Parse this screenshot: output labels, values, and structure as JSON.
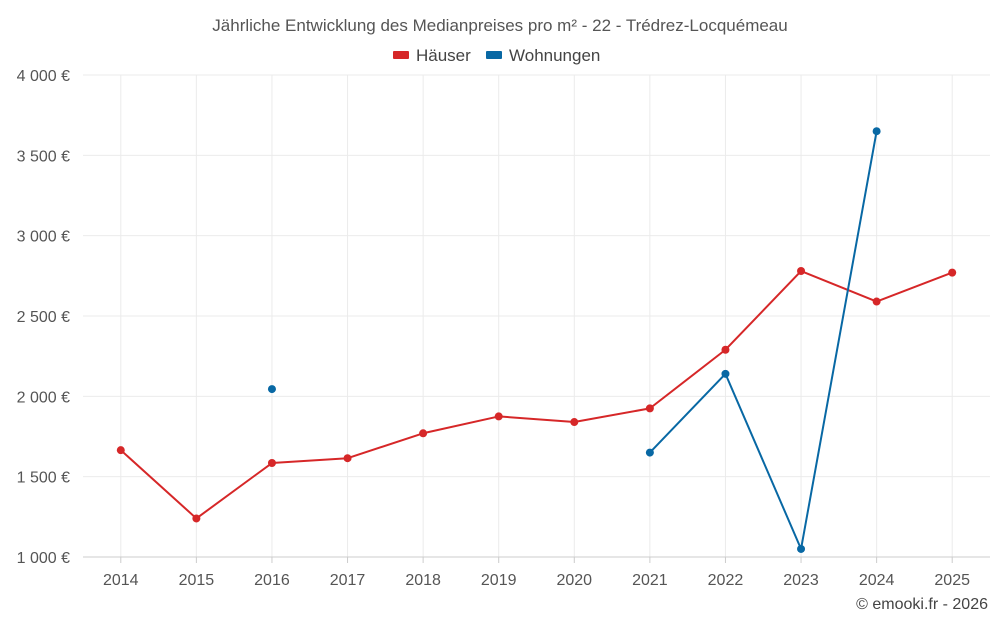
{
  "chart_data": {
    "type": "line",
    "title": "Jährliche Entwicklung des Medianpreises pro m² - 22 - Trédrez-Locquémeau",
    "categories": [
      "2014",
      "2015",
      "2016",
      "2017",
      "2018",
      "2019",
      "2020",
      "2021",
      "2022",
      "2023",
      "2024",
      "2025"
    ],
    "ylim": [
      1000,
      4000
    ],
    "yticks": [
      1000,
      1500,
      2000,
      2500,
      3000,
      3500,
      4000
    ],
    "ytick_labels": [
      "1 000 €",
      "1 500 €",
      "2 000 €",
      "2 500 €",
      "3 000 €",
      "3 500 €",
      "4 000 €"
    ],
    "grid": true,
    "legend_position": "top-center",
    "series": [
      {
        "name": "Häuser",
        "color": "#d62728",
        "values": [
          1665,
          1240,
          1585,
          1615,
          1770,
          1875,
          1840,
          1925,
          2290,
          2780,
          2590,
          2770
        ]
      },
      {
        "name": "Wohnungen",
        "color": "#0868a4",
        "values": [
          null,
          null,
          2045,
          null,
          null,
          null,
          null,
          1650,
          2140,
          1050,
          3650,
          null
        ]
      }
    ]
  },
  "credit": "© emooki.fr - 2026"
}
